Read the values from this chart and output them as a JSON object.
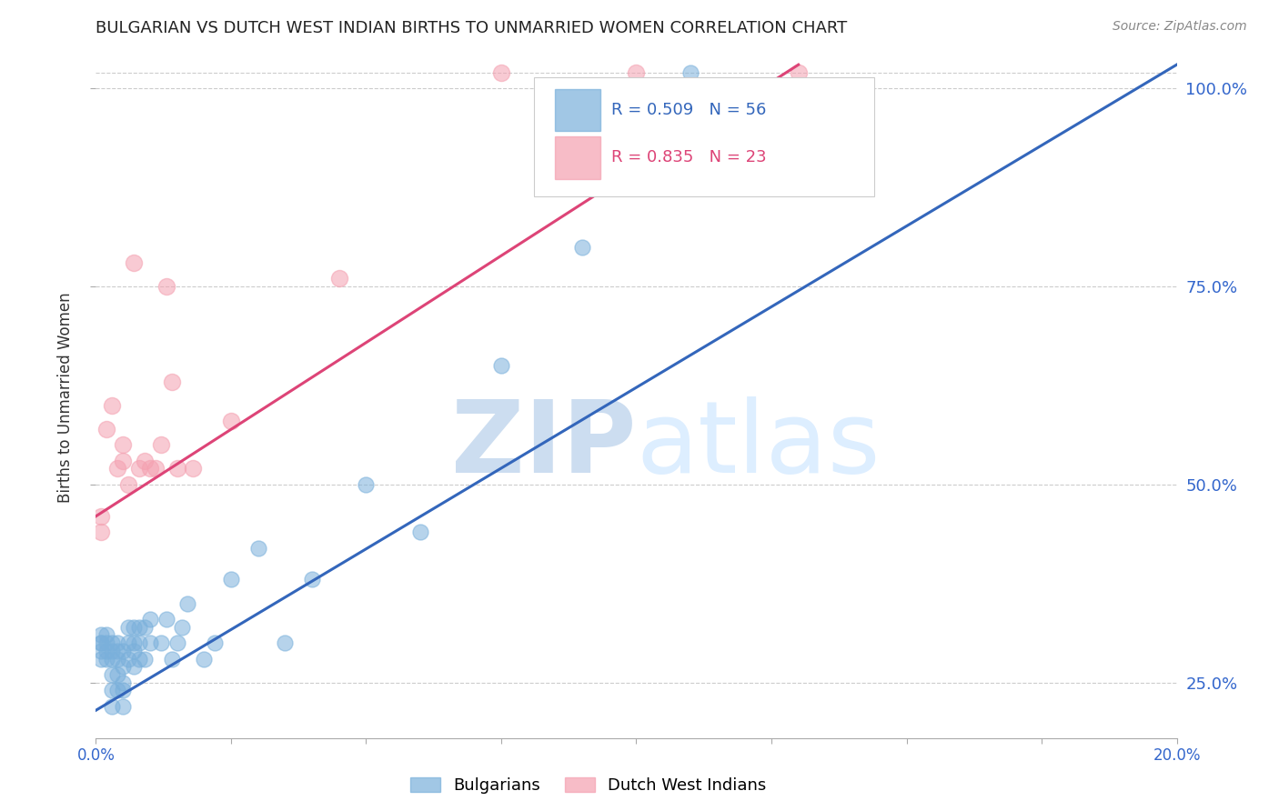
{
  "title": "BULGARIAN VS DUTCH WEST INDIAN BIRTHS TO UNMARRIED WOMEN CORRELATION CHART",
  "source": "Source: ZipAtlas.com",
  "ylabel": "Births to Unmarried Women",
  "xlim": [
    0.0,
    0.2
  ],
  "ylim": [
    0.18,
    1.04
  ],
  "yticks_right": [
    0.25,
    0.5,
    0.75,
    1.0
  ],
  "ytick_right_labels": [
    "25.0%",
    "50.0%",
    "75.0%",
    "100.0%"
  ],
  "grid_color": "#cccccc",
  "bg_color": "#ffffff",
  "blue_color": "#7ab0db",
  "pink_color": "#f4a0b0",
  "blue_line_color": "#3366bb",
  "pink_line_color": "#dd4477",
  "blue_R": 0.509,
  "blue_N": 56,
  "pink_R": 0.835,
  "pink_N": 23,
  "watermark_zip": "ZIP",
  "watermark_atlas": "atlas",
  "watermark_color": "#ddeeff",
  "legend_blue_label": "Bulgarians",
  "legend_pink_label": "Dutch West Indians",
  "bulgarians_x": [
    0.001,
    0.001,
    0.001,
    0.001,
    0.001,
    0.002,
    0.002,
    0.002,
    0.002,
    0.003,
    0.003,
    0.003,
    0.003,
    0.003,
    0.003,
    0.004,
    0.004,
    0.004,
    0.004,
    0.004,
    0.005,
    0.005,
    0.005,
    0.005,
    0.005,
    0.006,
    0.006,
    0.006,
    0.007,
    0.007,
    0.007,
    0.007,
    0.008,
    0.008,
    0.008,
    0.009,
    0.009,
    0.01,
    0.01,
    0.012,
    0.013,
    0.014,
    0.015,
    0.016,
    0.017,
    0.02,
    0.022,
    0.025,
    0.03,
    0.035,
    0.04,
    0.05,
    0.06,
    0.075,
    0.09,
    0.11
  ],
  "bulgarians_y": [
    0.28,
    0.29,
    0.3,
    0.3,
    0.31,
    0.28,
    0.29,
    0.3,
    0.31,
    0.22,
    0.24,
    0.26,
    0.28,
    0.29,
    0.3,
    0.24,
    0.26,
    0.28,
    0.29,
    0.3,
    0.22,
    0.24,
    0.25,
    0.27,
    0.29,
    0.28,
    0.3,
    0.32,
    0.27,
    0.29,
    0.3,
    0.32,
    0.28,
    0.3,
    0.32,
    0.28,
    0.32,
    0.3,
    0.33,
    0.3,
    0.33,
    0.28,
    0.3,
    0.32,
    0.35,
    0.28,
    0.3,
    0.38,
    0.42,
    0.3,
    0.38,
    0.5,
    0.44,
    0.65,
    0.8,
    1.02
  ],
  "dutch_x": [
    0.001,
    0.001,
    0.002,
    0.003,
    0.004,
    0.005,
    0.005,
    0.006,
    0.007,
    0.008,
    0.009,
    0.01,
    0.011,
    0.012,
    0.013,
    0.014,
    0.015,
    0.018,
    0.025,
    0.045,
    0.075,
    0.1,
    0.13
  ],
  "dutch_y": [
    0.44,
    0.46,
    0.57,
    0.6,
    0.52,
    0.53,
    0.55,
    0.5,
    0.78,
    0.52,
    0.53,
    0.52,
    0.52,
    0.55,
    0.75,
    0.63,
    0.52,
    0.52,
    0.58,
    0.76,
    1.02,
    1.02,
    1.02
  ],
  "blue_line_x0": 0.0,
  "blue_line_y0": 0.215,
  "blue_line_x1": 0.2,
  "blue_line_y1": 1.03,
  "pink_line_x0": 0.0,
  "pink_line_y0": 0.46,
  "pink_line_x1": 0.13,
  "pink_line_y1": 1.03
}
